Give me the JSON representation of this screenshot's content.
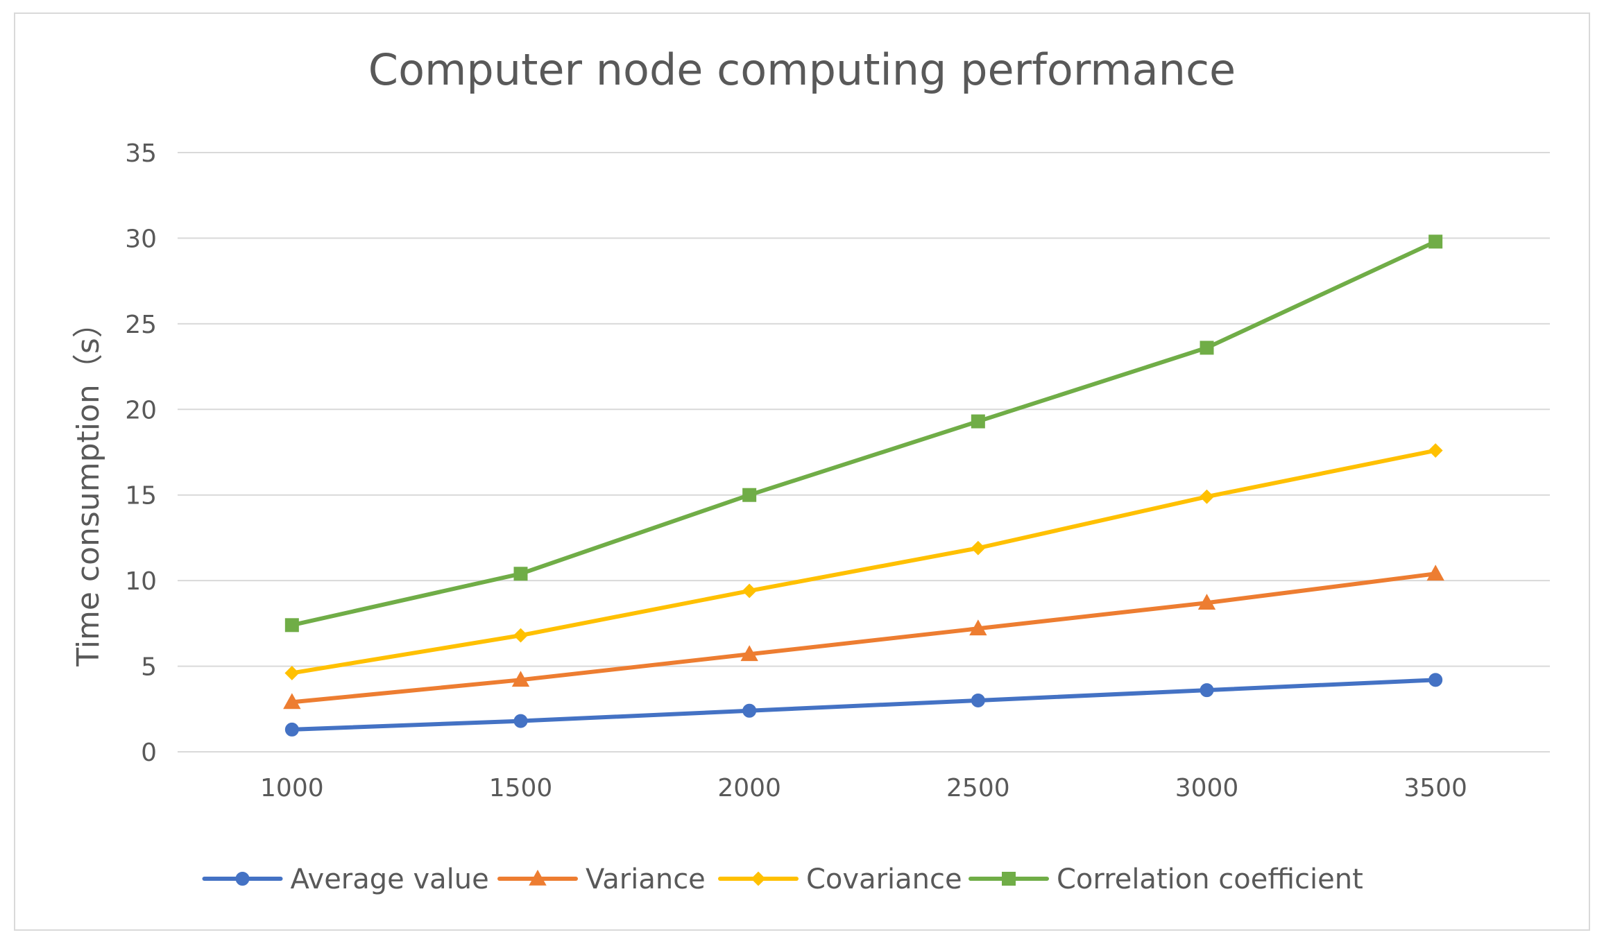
{
  "chart_data": {
    "type": "line",
    "title": "Computer node computing performance",
    "xlabel": "",
    "ylabel": "Time consumption（s）",
    "categories": [
      "1000",
      "1500",
      "2000",
      "2500",
      "3000",
      "3500"
    ],
    "ylim": [
      0,
      35
    ],
    "yticks": [
      0,
      5,
      10,
      15,
      20,
      25,
      30,
      35
    ],
    "grid": true,
    "legend_position": "bottom",
    "series": [
      {
        "name": "Average value",
        "color": "#4472C4",
        "marker": "circle",
        "values": [
          1.3,
          1.8,
          2.4,
          3.0,
          3.6,
          4.2
        ]
      },
      {
        "name": "Variance",
        "color": "#ED7D31",
        "marker": "triangle",
        "values": [
          2.9,
          4.2,
          5.7,
          7.2,
          8.7,
          10.4
        ]
      },
      {
        "name": "Covariance",
        "color": "#FFC000",
        "marker": "diamond",
        "values": [
          4.6,
          6.8,
          9.4,
          11.9,
          14.9,
          17.6
        ]
      },
      {
        "name": "Correlation coefficient",
        "color": "#70AD47",
        "marker": "square",
        "values": [
          7.4,
          10.4,
          15.0,
          19.3,
          23.6,
          29.8
        ]
      }
    ]
  }
}
